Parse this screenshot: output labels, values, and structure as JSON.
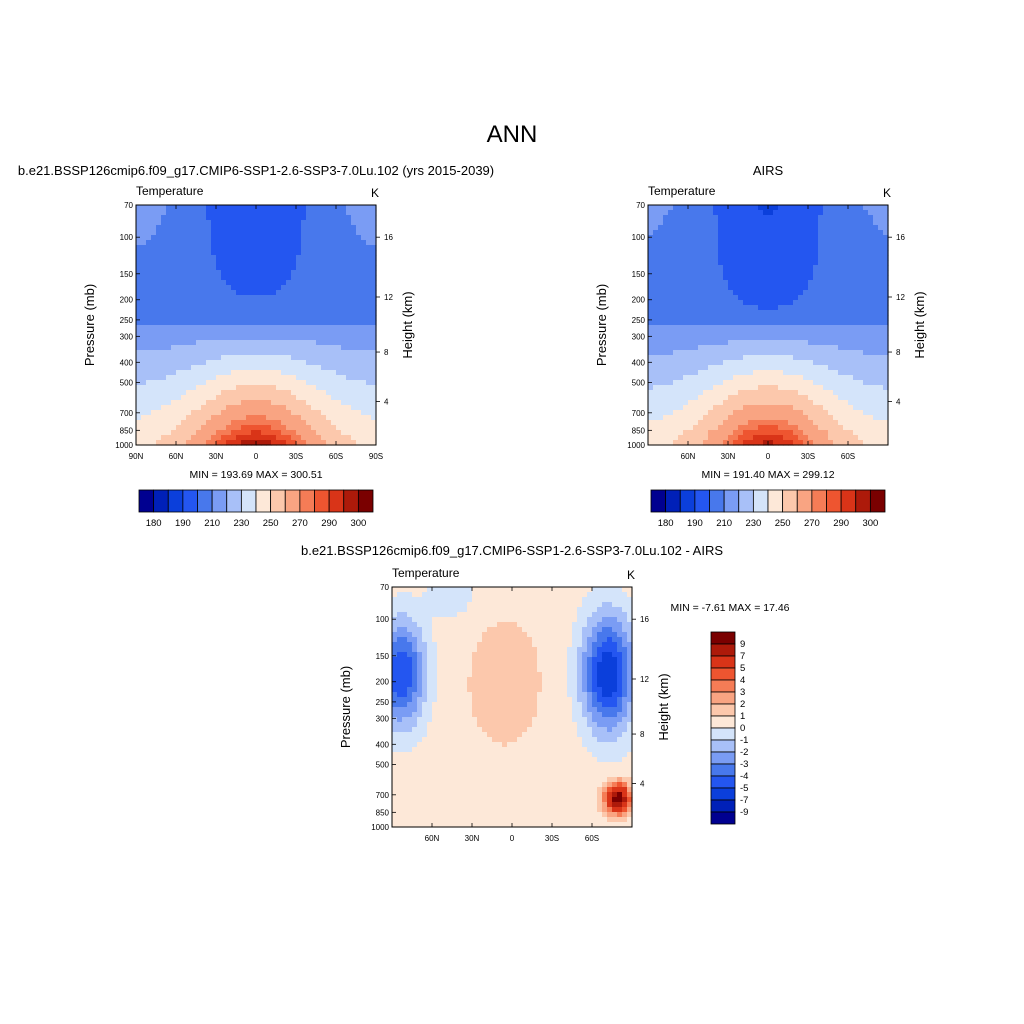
{
  "page_title": "ANN",
  "chart_data": [
    {
      "id": "model",
      "type": "heatmap",
      "subtitle": "b.e21.BSSP126cmip6.f09_g17.CMIP6-SSP1-2.6-SSP3-7.0Lu.102 (yrs 2015-2039)",
      "field_label": "Temperature",
      "units": "K",
      "ylabel": "Pressure (mb)",
      "ylabel_right": "Height (km)",
      "pressure_ticks": [
        "70",
        "100",
        "150",
        "200",
        "250",
        "300",
        "400",
        "500",
        "700",
        "850",
        "1000"
      ],
      "height_ticks": [
        "16",
        "12",
        "8",
        "4"
      ],
      "x_ticks": [
        "90N",
        "60N",
        "30N",
        "0",
        "30S",
        "60S",
        "90S"
      ],
      "min_max": "MIN = 193.69  MAX = 300.51",
      "min": 193.69,
      "max": 300.51,
      "colorbar_labels": [
        "180",
        "190",
        "210",
        "230",
        "250",
        "270",
        "290",
        "300"
      ],
      "colorbar_orientation": "horizontal"
    },
    {
      "id": "obs",
      "type": "heatmap",
      "subtitle": "AIRS",
      "field_label": "Temperature",
      "units": "K",
      "ylabel": "Pressure (mb)",
      "ylabel_right": "Height (km)",
      "pressure_ticks": [
        "70",
        "100",
        "150",
        "200",
        "250",
        "300",
        "400",
        "500",
        "700",
        "850",
        "1000"
      ],
      "height_ticks": [
        "16",
        "12",
        "8",
        "4"
      ],
      "x_ticks": [
        "60N",
        "30N",
        "0",
        "30S",
        "60S"
      ],
      "min_max": "MIN = 191.40  MAX = 299.12",
      "min": 191.4,
      "max": 299.12,
      "colorbar_labels": [
        "180",
        "190",
        "210",
        "230",
        "250",
        "270",
        "290",
        "300"
      ],
      "colorbar_orientation": "horizontal"
    },
    {
      "id": "diff",
      "type": "heatmap",
      "subtitle": "b.e21.BSSP126cmip6.f09_g17.CMIP6-SSP1-2.6-SSP3-7.0Lu.102 - AIRS",
      "field_label": "Temperature",
      "units": "K",
      "ylabel": "Pressure (mb)",
      "ylabel_right": "Height (km)",
      "pressure_ticks": [
        "70",
        "100",
        "150",
        "200",
        "250",
        "300",
        "400",
        "500",
        "700",
        "850",
        "1000"
      ],
      "height_ticks": [
        "16",
        "12",
        "8",
        "4"
      ],
      "x_ticks": [
        "60N",
        "30N",
        "0",
        "30S",
        "60S"
      ],
      "min_max": "MIN =  -7.61  MAX =  17.46",
      "min": -7.61,
      "max": 17.46,
      "colorbar_labels": [
        "9",
        "7",
        "5",
        "4",
        "3",
        "2",
        "1",
        "0",
        "-1",
        "-2",
        "-3",
        "-4",
        "-5",
        "-7",
        "-9"
      ],
      "colorbar_orientation": "vertical"
    }
  ],
  "colormaps": {
    "absolute": [
      "#000090",
      "#0020b8",
      "#0b3fdb",
      "#2456f0",
      "#4878ec",
      "#7a9cf4",
      "#a8c0f8",
      "#d4e4fa",
      "#fde8d8",
      "#fcc8ac",
      "#f9a482",
      "#f57c56",
      "#ee5530",
      "#d93418",
      "#ad1a0a",
      "#7a0000"
    ],
    "difference": [
      "#7a0000",
      "#ad1a0a",
      "#d93418",
      "#ee5530",
      "#f57c56",
      "#f9a482",
      "#fcc8ac",
      "#fde8d8",
      "#d4e4fa",
      "#a8c0f8",
      "#7a9cf4",
      "#4878ec",
      "#2456f0",
      "#0b3fdb",
      "#0020b8",
      "#000090"
    ]
  }
}
